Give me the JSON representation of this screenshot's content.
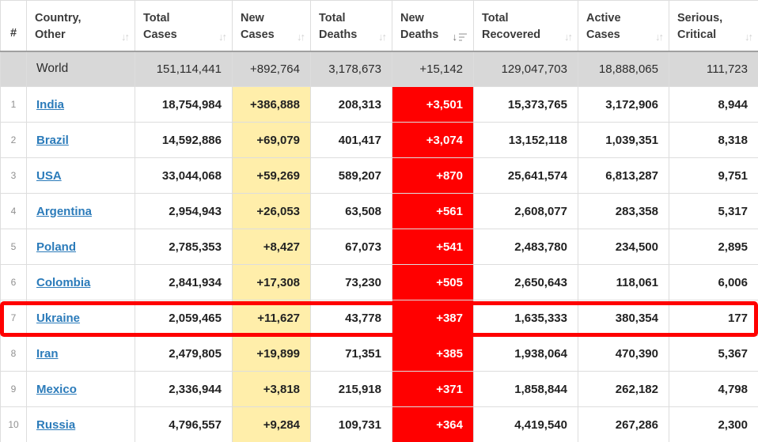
{
  "table": {
    "columns": [
      {
        "key": "rank",
        "label": "#",
        "sort": "none"
      },
      {
        "key": "country",
        "label": "Country,\nOther",
        "sort": "unsorted"
      },
      {
        "key": "total_cases",
        "label": "Total\nCases",
        "sort": "unsorted"
      },
      {
        "key": "new_cases",
        "label": "New\nCases",
        "sort": "unsorted"
      },
      {
        "key": "total_deaths",
        "label": "Total\nDeaths",
        "sort": "unsorted"
      },
      {
        "key": "new_deaths",
        "label": "New\nDeaths",
        "sort": "desc"
      },
      {
        "key": "total_recovered",
        "label": "Total\nRecovered",
        "sort": "unsorted"
      },
      {
        "key": "active_cases",
        "label": "Active\nCases",
        "sort": "unsorted"
      },
      {
        "key": "serious_critical",
        "label": "Serious,\nCritical",
        "sort": "unsorted"
      }
    ],
    "world": {
      "name": "World",
      "total_cases": "151,114,441",
      "new_cases": "+892,764",
      "total_deaths": "3,178,673",
      "new_deaths": "+15,142",
      "total_recovered": "129,047,703",
      "active_cases": "18,888,065",
      "serious_critical": "111,723"
    },
    "rows": [
      {
        "rank": "1",
        "country": "India",
        "total_cases": "18,754,984",
        "new_cases": "+386,888",
        "total_deaths": "208,313",
        "new_deaths": "+3,501",
        "total_recovered": "15,373,765",
        "active_cases": "3,172,906",
        "serious_critical": "8,944"
      },
      {
        "rank": "2",
        "country": "Brazil",
        "total_cases": "14,592,886",
        "new_cases": "+69,079",
        "total_deaths": "401,417",
        "new_deaths": "+3,074",
        "total_recovered": "13,152,118",
        "active_cases": "1,039,351",
        "serious_critical": "8,318"
      },
      {
        "rank": "3",
        "country": "USA",
        "total_cases": "33,044,068",
        "new_cases": "+59,269",
        "total_deaths": "589,207",
        "new_deaths": "+870",
        "total_recovered": "25,641,574",
        "active_cases": "6,813,287",
        "serious_critical": "9,751"
      },
      {
        "rank": "4",
        "country": "Argentina",
        "total_cases": "2,954,943",
        "new_cases": "+26,053",
        "total_deaths": "63,508",
        "new_deaths": "+561",
        "total_recovered": "2,608,077",
        "active_cases": "283,358",
        "serious_critical": "5,317"
      },
      {
        "rank": "5",
        "country": "Poland",
        "total_cases": "2,785,353",
        "new_cases": "+8,427",
        "total_deaths": "67,073",
        "new_deaths": "+541",
        "total_recovered": "2,483,780",
        "active_cases": "234,500",
        "serious_critical": "2,895"
      },
      {
        "rank": "6",
        "country": "Colombia",
        "total_cases": "2,841,934",
        "new_cases": "+17,308",
        "total_deaths": "73,230",
        "new_deaths": "+505",
        "total_recovered": "2,650,643",
        "active_cases": "118,061",
        "serious_critical": "6,006"
      },
      {
        "rank": "7",
        "country": "Ukraine",
        "total_cases": "2,059,465",
        "new_cases": "+11,627",
        "total_deaths": "43,778",
        "new_deaths": "+387",
        "total_recovered": "1,635,333",
        "active_cases": "380,354",
        "serious_critical": "177"
      },
      {
        "rank": "8",
        "country": "Iran",
        "total_cases": "2,479,805",
        "new_cases": "+19,899",
        "total_deaths": "71,351",
        "new_deaths": "+385",
        "total_recovered": "1,938,064",
        "active_cases": "470,390",
        "serious_critical": "5,367"
      },
      {
        "rank": "9",
        "country": "Mexico",
        "total_cases": "2,336,944",
        "new_cases": "+3,818",
        "total_deaths": "215,918",
        "new_deaths": "+371",
        "total_recovered": "1,858,844",
        "active_cases": "262,182",
        "serious_critical": "4,798"
      },
      {
        "rank": "10",
        "country": "Russia",
        "total_cases": "4,796,557",
        "new_cases": "+9,284",
        "total_deaths": "109,731",
        "new_deaths": "+364",
        "total_recovered": "4,419,540",
        "active_cases": "267,286",
        "serious_critical": "2,300"
      }
    ],
    "highlight": {
      "row_country": "Ukraine",
      "border_color": "#ff0000"
    },
    "colors": {
      "new_cases_bg": "#ffeeaa",
      "new_deaths_bg": "#ff0000",
      "total_row_bg": "#d8d8d8",
      "link_blue": "#2b7bba"
    }
  }
}
